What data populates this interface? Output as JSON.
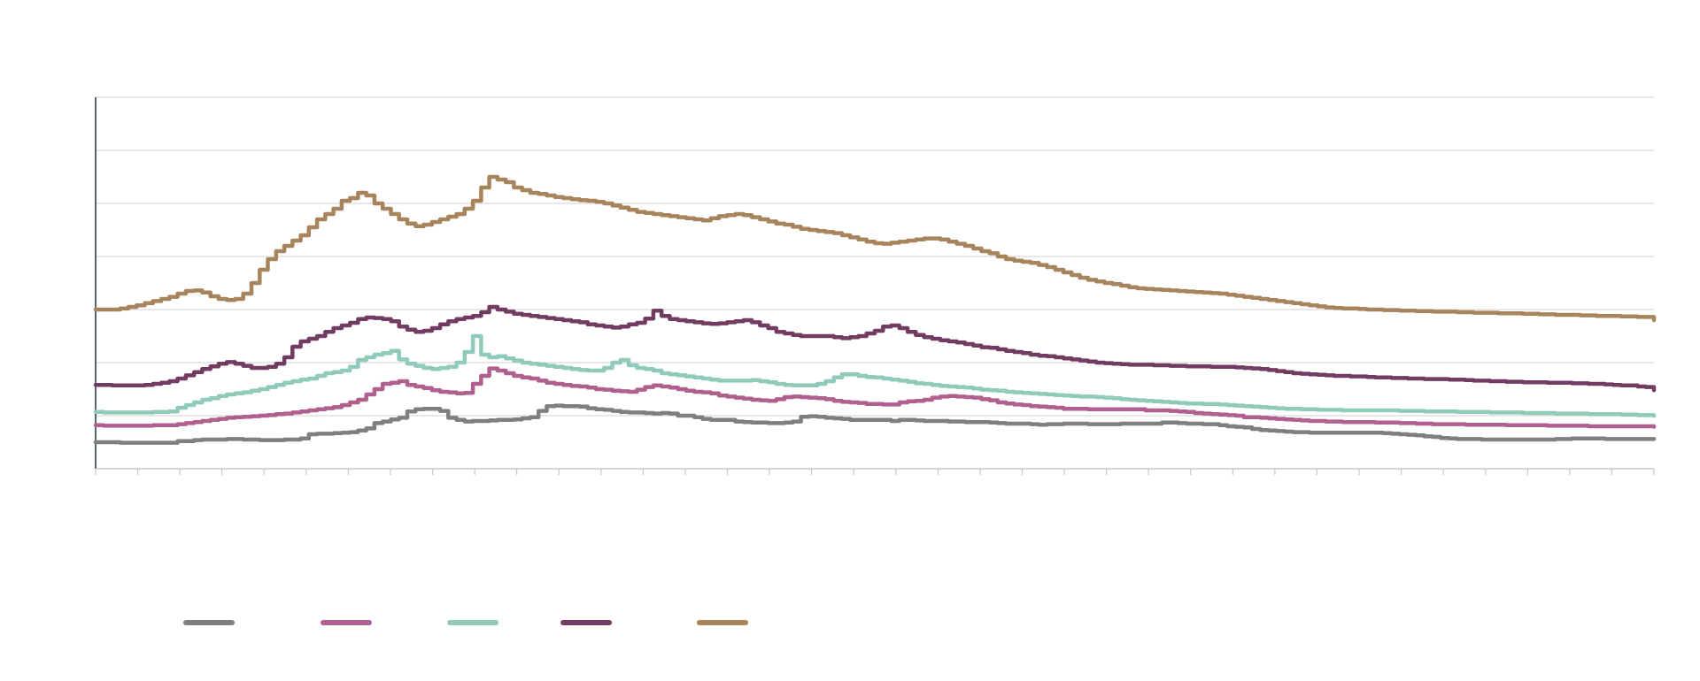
{
  "chart_data": {
    "type": "line",
    "title": "",
    "xlabel": "",
    "ylabel": "",
    "ylim": [
      0,
      700
    ],
    "y_ticks": [
      "",
      "",
      "",
      "",
      "",
      "",
      "",
      ""
    ],
    "x_ticks": [
      "",
      "",
      "",
      "",
      "",
      "",
      "",
      "",
      "",
      "",
      "",
      "",
      "",
      "",
      "",
      "",
      "",
      "",
      "",
      "",
      "",
      "",
      "",
      "",
      "",
      "",
      "",
      "",
      "",
      "",
      "",
      "",
      "",
      "",
      "",
      "",
      "",
      ""
    ],
    "grid": true,
    "legend_position": "bottom",
    "x": [
      0,
      1,
      2,
      3,
      4,
      5,
      6,
      7,
      8,
      9,
      10,
      11,
      12,
      13,
      14,
      15,
      16,
      17,
      18,
      19,
      20,
      21,
      22,
      23,
      24,
      25,
      26,
      27,
      28,
      29,
      30,
      31,
      32,
      33,
      34,
      35,
      36,
      37,
      38,
      39,
      40,
      41,
      42,
      43,
      44,
      45,
      46,
      47,
      48,
      49,
      50,
      51,
      52,
      53,
      54,
      55,
      56,
      57,
      58,
      59,
      60,
      61,
      62,
      63,
      64,
      65,
      66,
      67,
      68,
      69,
      70,
      71,
      72,
      73,
      74,
      75,
      76,
      77,
      78,
      79,
      80,
      81,
      82,
      83,
      84,
      85,
      86,
      87,
      88,
      89,
      90,
      91,
      92,
      93,
      94,
      95,
      96,
      97,
      98,
      99,
      100,
      101,
      102,
      103,
      104,
      105,
      106,
      107,
      108,
      109,
      110,
      111,
      112,
      113,
      114,
      115,
      116,
      117,
      118,
      119,
      120,
      121,
      122,
      123,
      124,
      125,
      126,
      127,
      128,
      129,
      130,
      131,
      132,
      133,
      134,
      135,
      136,
      137,
      138,
      139,
      140,
      141,
      142,
      143,
      144,
      145,
      146,
      147,
      148,
      149,
      150,
      151,
      152,
      153,
      154,
      155,
      156,
      157,
      158,
      159,
      160,
      161,
      162,
      163,
      164,
      165,
      166,
      167,
      168,
      169,
      170,
      171,
      172,
      173,
      174,
      175,
      176,
      177,
      178,
      179,
      180,
      181,
      182,
      183,
      184,
      185,
      186,
      187,
      188,
      189,
      190
    ],
    "series": [
      {
        "color": "#7f7f7f",
        "values": [
          50,
          50,
          50,
          49,
          49,
          49,
          49,
          49,
          49,
          49,
          52,
          52,
          54,
          55,
          55,
          55,
          56,
          56,
          55,
          55,
          54,
          54,
          54,
          55,
          55,
          57,
          65,
          66,
          66,
          67,
          68,
          69,
          72,
          76,
          86,
          89,
          93,
          96,
          108,
          112,
          113,
          113,
          109,
          96,
          92,
          89,
          90,
          90,
          91,
          92,
          92,
          93,
          95,
          97,
          109,
          118,
          119,
          118,
          118,
          117,
          114,
          112,
          111,
          109,
          107,
          106,
          106,
          105,
          104,
          105,
          104,
          100,
          100,
          97,
          94,
          92,
          92,
          92,
          89,
          88,
          87,
          87,
          86,
          86,
          87,
          89,
          98,
          99,
          98,
          96,
          95,
          94,
          92,
          92,
          92,
          92,
          92,
          90,
          92,
          92,
          91,
          90,
          90,
          90,
          89,
          89,
          88,
          88,
          88,
          87,
          86,
          85,
          85,
          85,
          84,
          83,
          84,
          84,
          85,
          85,
          85,
          84,
          84,
          84,
          84,
          85,
          85,
          85,
          85,
          85,
          87,
          87,
          86,
          85,
          85,
          84,
          84,
          82,
          80,
          79,
          78,
          75,
          73,
          72,
          71,
          70,
          69,
          69,
          68,
          68,
          68,
          68,
          68,
          68,
          68,
          68,
          68,
          67,
          66,
          65,
          64,
          63,
          61,
          60,
          58,
          57,
          56,
          56,
          56,
          55,
          55,
          55,
          55,
          55,
          55,
          55,
          55,
          55,
          56,
          56,
          57,
          57,
          57,
          57,
          56,
          56,
          56,
          56,
          56,
          56,
          56
        ]
      },
      {
        "color": "#b0608e",
        "values": [
          82,
          81,
          81,
          81,
          81,
          81,
          81,
          82,
          82,
          82,
          84,
          86,
          88,
          90,
          92,
          94,
          96,
          97,
          98,
          99,
          100,
          101,
          103,
          104,
          106,
          108,
          110,
          112,
          114,
          116,
          120,
          125,
          130,
          140,
          150,
          160,
          162,
          165,
          158,
          155,
          152,
          148,
          145,
          144,
          142,
          143,
          160,
          175,
          189,
          185,
          180,
          175,
          172,
          170,
          166,
          162,
          160,
          158,
          156,
          155,
          153,
          150,
          149,
          147,
          146,
          145,
          149,
          154,
          157,
          155,
          153,
          150,
          147,
          145,
          144,
          142,
          138,
          136,
          134,
          132,
          130,
          129,
          128,
          131,
          135,
          136,
          135,
          134,
          133,
          131,
          128,
          126,
          125,
          124,
          122,
          122,
          121,
          121,
          125,
          127,
          128,
          130,
          134,
          136,
          137,
          136,
          135,
          134,
          131,
          129,
          125,
          123,
          121,
          120,
          118,
          117,
          116,
          115,
          113,
          113,
          113,
          112,
          112,
          112,
          112,
          112,
          112,
          112,
          110,
          110,
          110,
          109,
          108,
          107,
          105,
          104,
          103,
          102,
          101,
          100,
          97,
          97,
          96,
          95,
          94,
          93,
          92,
          91,
          90,
          90,
          89,
          89,
          88,
          88,
          88,
          88,
          87,
          87,
          87,
          86,
          86,
          85,
          85,
          84,
          84,
          84,
          84,
          83,
          83,
          83,
          83,
          83,
          82,
          82,
          82,
          82,
          82,
          81,
          81,
          81,
          81,
          81,
          80,
          80,
          80,
          80,
          80,
          80,
          80,
          80,
          79
        ]
      },
      {
        "color": "#8fcabb",
        "values": [
          107,
          106,
          106,
          106,
          106,
          106,
          106,
          107,
          107,
          108,
          115,
          120,
          125,
          130,
          133,
          137,
          140,
          142,
          144,
          147,
          150,
          154,
          158,
          162,
          165,
          168,
          170,
          175,
          180,
          182,
          185,
          192,
          205,
          210,
          215,
          218,
          222,
          206,
          198,
          194,
          190,
          188,
          190,
          192,
          200,
          220,
          250,
          215,
          210,
          212,
          208,
          204,
          200,
          198,
          196,
          194,
          192,
          190,
          188,
          186,
          185,
          185,
          190,
          200,
          205,
          195,
          190,
          188,
          185,
          180,
          178,
          176,
          174,
          172,
          170,
          168,
          166,
          166,
          166,
          166,
          167,
          165,
          163,
          160,
          158,
          157,
          157,
          157,
          160,
          165,
          172,
          178,
          178,
          175,
          173,
          172,
          170,
          168,
          166,
          164,
          161,
          160,
          158,
          156,
          155,
          154,
          153,
          151,
          149,
          148,
          147,
          145,
          144,
          143,
          142,
          141,
          140,
          139,
          138,
          137,
          136,
          136,
          135,
          134,
          133,
          131,
          130,
          129,
          128,
          127,
          126,
          125,
          124,
          123,
          123,
          122,
          122,
          121,
          120,
          119,
          118,
          117,
          116,
          115,
          114,
          113,
          113,
          112,
          112,
          111,
          111,
          111,
          110,
          110,
          110,
          110,
          110,
          110,
          110,
          109,
          109,
          109,
          108,
          108,
          108,
          108,
          107,
          107,
          107,
          107,
          106,
          106,
          106,
          106,
          105,
          105,
          105,
          105,
          104,
          104,
          104,
          104,
          103,
          103,
          103,
          103,
          102,
          102,
          101,
          101,
          100
        ]
      },
      {
        "color": "#723c62",
        "values": [
          158,
          158,
          157,
          157,
          157,
          157,
          158,
          160,
          162,
          165,
          170,
          176,
          182,
          188,
          193,
          198,
          201,
          198,
          194,
          190,
          190,
          192,
          198,
          210,
          230,
          240,
          245,
          250,
          258,
          265,
          270,
          275,
          282,
          285,
          284,
          282,
          278,
          268,
          262,
          258,
          260,
          265,
          272,
          278,
          282,
          285,
          288,
          295,
          305,
          300,
          296,
          292,
          290,
          288,
          286,
          284,
          282,
          280,
          278,
          276,
          272,
          270,
          268,
          266,
          268,
          272,
          275,
          283,
          298,
          288,
          282,
          280,
          278,
          276,
          274,
          273,
          274,
          276,
          278,
          280,
          276,
          270,
          265,
          258,
          255,
          252,
          250,
          250,
          250,
          250,
          248,
          246,
          248,
          250,
          255,
          260,
          268,
          270,
          265,
          258,
          252,
          248,
          245,
          242,
          240,
          238,
          235,
          232,
          229,
          228,
          225,
          222,
          220,
          218,
          215,
          213,
          212,
          210,
          208,
          206,
          204,
          202,
          200,
          199,
          198,
          197,
          196,
          196,
          196,
          195,
          195,
          194,
          194,
          193,
          193,
          193,
          192,
          192,
          192,
          191,
          190,
          189,
          188,
          186,
          184,
          182,
          180,
          179,
          178,
          177,
          176,
          175,
          175,
          174,
          174,
          173,
          172,
          172,
          171,
          171,
          170,
          170,
          169,
          169,
          169,
          168,
          168,
          167,
          166,
          166,
          165,
          165,
          164,
          164,
          163,
          163,
          163,
          162,
          162,
          162,
          161,
          161,
          160,
          160,
          159,
          158,
          157,
          157,
          155,
          154,
          148
        ]
      },
      {
        "color": "#a7845c",
        "values": [
          300,
          300,
          300,
          302,
          305,
          308,
          312,
          316,
          320,
          324,
          330,
          335,
          336,
          332,
          325,
          320,
          318,
          320,
          330,
          350,
          375,
          395,
          410,
          420,
          430,
          440,
          455,
          470,
          480,
          490,
          505,
          510,
          520,
          515,
          500,
          490,
          480,
          470,
          462,
          457,
          460,
          465,
          470,
          475,
          480,
          490,
          505,
          530,
          550,
          545,
          540,
          530,
          525,
          520,
          518,
          515,
          512,
          510,
          508,
          506,
          505,
          503,
          500,
          496,
          492,
          488,
          484,
          482,
          480,
          478,
          476,
          474,
          472,
          470,
          468,
          472,
          476,
          478,
          480,
          478,
          474,
          470,
          466,
          462,
          460,
          456,
          452,
          450,
          448,
          446,
          444,
          440,
          436,
          432,
          428,
          425,
          424,
          426,
          428,
          430,
          432,
          434,
          434,
          432,
          428,
          424,
          420,
          415,
          410,
          406,
          400,
          395,
          392,
          390,
          388,
          384,
          380,
          375,
          370,
          365,
          360,
          356,
          353,
          350,
          348,
          345,
          342,
          340,
          339,
          338,
          337,
          336,
          335,
          334,
          333,
          332,
          331,
          330,
          328,
          326,
          324,
          322,
          320,
          318,
          316,
          314,
          312,
          310,
          308,
          306,
          304,
          303,
          302,
          302,
          301,
          300,
          300,
          299,
          299,
          298,
          298,
          297,
          297,
          296,
          296,
          296,
          295,
          295,
          294,
          294,
          294,
          293,
          293,
          293,
          292,
          292,
          291,
          291,
          290,
          290,
          290,
          289,
          289,
          288,
          288,
          288,
          287,
          287,
          286,
          286,
          280
        ]
      }
    ]
  }
}
